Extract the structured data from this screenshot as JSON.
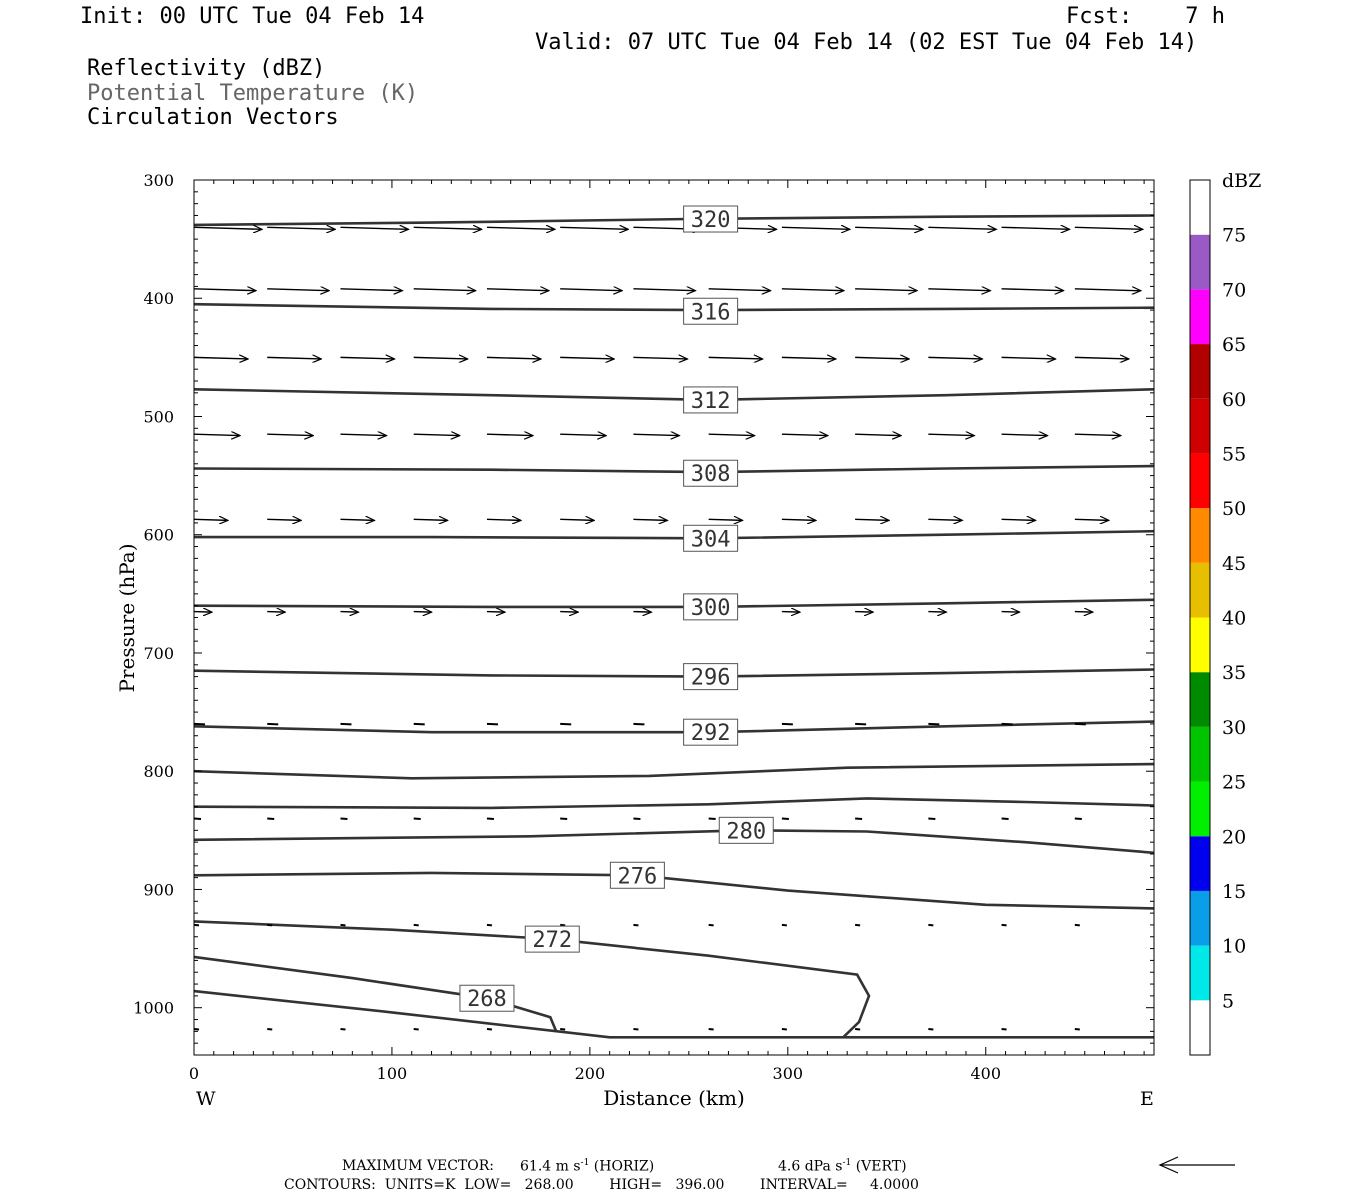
{
  "header": {
    "init": "Init: 00 UTC Tue 04 Feb 14",
    "fcst": "Fcst:    7 h",
    "valid": "Valid: 07 UTC Tue 04 Feb 14 (02 EST Tue 04 Feb 14)",
    "field1": "Reflectivity (dBZ)",
    "field2": "Potential Temperature (K)",
    "field3": "Circulation Vectors"
  },
  "footer": {
    "max_vector_label": "MAXIMUM VECTOR:",
    "max_horiz": "61.4 m s",
    "horiz_unit": "(HORIZ)",
    "max_vert": "4.6 dPa s",
    "vert_unit": "(VERT)",
    "exp": "-1",
    "contours": "CONTOURS:  UNITS=K  LOW=   268.00        HIGH=   396.00        INTERVAL=     4.0000"
  },
  "colors": {
    "contour": "#333333",
    "vector": "#000000",
    "gray_text": "#666666"
  },
  "chart_data": {
    "type": "cross-section",
    "xlabel": "Distance (km)",
    "ylabel": "Pressure (hPa)",
    "xlim": [
      0,
      485
    ],
    "ylim": [
      300,
      1040
    ],
    "x_ticks": [
      0,
      100,
      200,
      300,
      400
    ],
    "y_ticks": [
      300,
      400,
      500,
      600,
      700,
      800,
      900,
      1000
    ],
    "x_end_labels": {
      "left": "W",
      "right": "E"
    },
    "colorbar": {
      "title": "dBZ",
      "levels": [
        5,
        10,
        15,
        20,
        25,
        30,
        35,
        40,
        45,
        50,
        55,
        60,
        65,
        70,
        75
      ],
      "colors": [
        "#ffffff",
        "#00e8e8",
        "#0a9ee8",
        "#0000f0",
        "#00ee00",
        "#00c400",
        "#008a00",
        "#ffff00",
        "#e8bf00",
        "#ff8a00",
        "#ff0000",
        "#d00000",
        "#b00000",
        "#ff00ff",
        "#9b59c6",
        "#ffffff"
      ]
    },
    "contours": [
      {
        "label": "320",
        "label_pos": [
          261,
          333
        ],
        "points": [
          [
            0,
            338
          ],
          [
            120,
            336
          ],
          [
            250,
            333
          ],
          [
            380,
            331
          ],
          [
            485,
            330
          ]
        ]
      },
      {
        "label": "316",
        "label_pos": [
          261,
          411
        ],
        "points": [
          [
            0,
            405
          ],
          [
            150,
            409
          ],
          [
            261,
            410
          ],
          [
            380,
            409
          ],
          [
            485,
            408
          ]
        ]
      },
      {
        "label": "312",
        "label_pos": [
          261,
          486
        ],
        "points": [
          [
            0,
            477
          ],
          [
            150,
            482
          ],
          [
            261,
            486
          ],
          [
            380,
            482
          ],
          [
            485,
            477
          ]
        ]
      },
      {
        "label": "308",
        "label_pos": [
          261,
          548
        ],
        "points": [
          [
            0,
            544
          ],
          [
            150,
            545
          ],
          [
            261,
            547
          ],
          [
            380,
            544
          ],
          [
            485,
            542
          ]
        ]
      },
      {
        "label": "304",
        "label_pos": [
          261,
          603
        ],
        "points": [
          [
            0,
            602
          ],
          [
            120,
            602
          ],
          [
            261,
            603
          ],
          [
            380,
            600
          ],
          [
            485,
            597
          ]
        ]
      },
      {
        "label": "300",
        "label_pos": [
          261,
          661
        ],
        "points": [
          [
            0,
            660
          ],
          [
            150,
            661
          ],
          [
            261,
            661
          ],
          [
            380,
            658
          ],
          [
            485,
            655
          ]
        ]
      },
      {
        "label": "296",
        "label_pos": [
          261,
          720
        ],
        "points": [
          [
            0,
            715
          ],
          [
            150,
            719
          ],
          [
            261,
            720
          ],
          [
            380,
            717
          ],
          [
            485,
            714
          ]
        ]
      },
      {
        "label": "292",
        "label_pos": [
          261,
          767
        ],
        "points": [
          [
            0,
            762
          ],
          [
            120,
            767
          ],
          [
            261,
            767
          ],
          [
            380,
            762
          ],
          [
            485,
            758
          ]
        ]
      },
      {
        "label": "",
        "label_pos": null,
        "points": [
          [
            0,
            800
          ],
          [
            110,
            806
          ],
          [
            230,
            804
          ],
          [
            330,
            797
          ],
          [
            485,
            794
          ]
        ]
      },
      {
        "label": "",
        "label_pos": null,
        "points": [
          [
            0,
            830
          ],
          [
            150,
            831
          ],
          [
            260,
            828
          ],
          [
            340,
            823
          ],
          [
            420,
            826
          ],
          [
            485,
            829
          ]
        ]
      },
      {
        "label": "280",
        "label_pos": [
          279,
          850
        ],
        "points": [
          [
            0,
            858
          ],
          [
            170,
            855
          ],
          [
            279,
            850
          ],
          [
            340,
            851
          ],
          [
            420,
            860
          ],
          [
            485,
            869
          ]
        ]
      },
      {
        "label": "276",
        "label_pos": [
          224,
          888
        ],
        "points": [
          [
            0,
            888
          ],
          [
            120,
            886
          ],
          [
            224,
            888
          ],
          [
            300,
            901
          ],
          [
            400,
            913
          ],
          [
            485,
            916
          ]
        ]
      },
      {
        "label": "272",
        "label_pos": [
          181,
          942
        ],
        "points": [
          [
            0,
            927
          ],
          [
            100,
            934
          ],
          [
            181,
            942
          ],
          [
            260,
            956
          ],
          [
            335,
            972
          ],
          [
            341,
            990
          ],
          [
            336,
            1012
          ],
          [
            328,
            1025
          ]
        ]
      },
      {
        "label": "268",
        "label_pos": [
          148,
          992
        ],
        "points": [
          [
            0,
            957
          ],
          [
            80,
            975
          ],
          [
            148,
            992
          ],
          [
            180,
            1008
          ],
          [
            183,
            1020
          ]
        ]
      },
      {
        "label": "",
        "label_pos": null,
        "points": [
          [
            0,
            986
          ],
          [
            100,
            1004
          ],
          [
            210,
            1025
          ],
          [
            485,
            1025
          ]
        ]
      }
    ],
    "vector_rows": [
      {
        "p": 340,
        "x": [
          0,
          37,
          74,
          111,
          148,
          185,
          222,
          260,
          297,
          334,
          371,
          408,
          445
        ],
        "len": [
          34,
          34,
          34,
          34,
          34,
          34,
          34,
          34,
          34,
          34,
          34,
          34,
          34
        ]
      },
      {
        "p": 392,
        "x": [
          0,
          37,
          74,
          111,
          148,
          185,
          222,
          260,
          297,
          334,
          371,
          408,
          445
        ],
        "len": [
          31,
          31,
          31,
          31,
          31,
          31,
          31,
          31,
          31,
          31,
          31,
          31,
          33
        ]
      },
      {
        "p": 450,
        "x": [
          0,
          37,
          74,
          111,
          148,
          185,
          222,
          260,
          297,
          334,
          371,
          408,
          445
        ],
        "len": [
          27,
          27,
          27,
          27,
          27,
          27,
          27,
          27,
          27,
          27,
          27,
          27,
          27
        ]
      },
      {
        "p": 515,
        "x": [
          0,
          37,
          74,
          111,
          148,
          185,
          222,
          260,
          297,
          334,
          371,
          408,
          445
        ],
        "len": [
          23,
          23,
          23,
          23,
          23,
          23,
          23,
          23,
          23,
          23,
          23,
          23,
          23
        ]
      },
      {
        "p": 587,
        "x": [
          0,
          37,
          74,
          111,
          148,
          185,
          222,
          260,
          297,
          334,
          371,
          408,
          445
        ],
        "len": [
          17,
          17,
          17,
          17,
          17,
          17,
          17,
          17,
          17,
          17,
          17,
          17,
          17
        ]
      },
      {
        "p": 665,
        "x": [
          0,
          37,
          74,
          111,
          148,
          185,
          222,
          260,
          297,
          334,
          371,
          408,
          445
        ],
        "len": [
          9,
          9,
          9,
          9,
          9,
          9,
          9,
          9,
          9,
          9,
          9,
          9,
          9
        ]
      },
      {
        "p": 760,
        "x": [
          0,
          37,
          74,
          111,
          148,
          185,
          222,
          260,
          297,
          334,
          371,
          408,
          445
        ],
        "len": [
          4,
          4,
          4,
          4,
          4,
          4,
          4,
          4,
          4,
          4,
          4,
          4,
          4
        ]
      },
      {
        "p": 840,
        "x": [
          0,
          37,
          74,
          111,
          148,
          185,
          222,
          260,
          297,
          334,
          371,
          408,
          445
        ],
        "len": [
          2,
          2,
          2,
          2,
          2,
          2,
          2,
          2,
          2,
          2,
          2,
          2,
          2
        ]
      },
      {
        "p": 930,
        "x": [
          0,
          37,
          74,
          111,
          148,
          185,
          222,
          260,
          297,
          334,
          371,
          408,
          445
        ],
        "len": [
          1,
          1,
          1,
          1,
          1,
          1,
          1,
          1,
          1,
          1,
          1,
          1,
          1
        ]
      },
      {
        "p": 1018,
        "x": [
          0,
          37,
          74,
          111,
          148,
          185,
          222,
          260,
          297,
          334,
          371,
          408,
          445
        ],
        "len": [
          1,
          1,
          1,
          1,
          1,
          1,
          1,
          1,
          1,
          1,
          1,
          1,
          1
        ]
      }
    ]
  }
}
